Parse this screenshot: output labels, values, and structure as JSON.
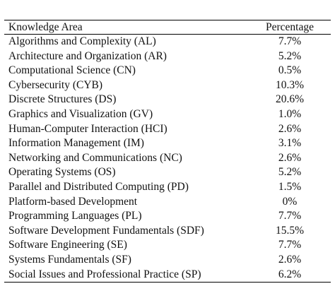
{
  "table": {
    "header": [
      "Knowledge Area",
      "Percentage"
    ],
    "rows": [
      [
        "Algorithms and Complexity (AL)",
        "7.7%"
      ],
      [
        "Architecture and Organization (AR)",
        "5.2%"
      ],
      [
        "Computational Science (CN)",
        "0.5%"
      ],
      [
        "Cybersecurity (CYB)",
        "10.3%"
      ],
      [
        "Discrete Structures (DS)",
        "20.6%"
      ],
      [
        "Graphics and Visualization (GV)",
        "1.0%"
      ],
      [
        "Human-Computer Interaction (HCI)",
        "2.6%"
      ],
      [
        "Information Management (IM)",
        "3.1%"
      ],
      [
        "Networking and Communications (NC)",
        "2.6%"
      ],
      [
        "Operating Systems (OS)",
        "5.2%"
      ],
      [
        "Parallel and Distributed Computing (PD)",
        "1.5%"
      ],
      [
        "Platform-based Development",
        "0%"
      ],
      [
        "Programming Languages (PL)",
        "7.7%"
      ],
      [
        "Software Development Fundamentals (SDF)",
        "15.5%"
      ],
      [
        "Software Engineering (SE)",
        "7.7%"
      ],
      [
        "Systems Fundamentals (SF)",
        "2.6%"
      ],
      [
        "Social Issues and Professional Practice (SP)",
        "6.2%"
      ]
    ]
  }
}
